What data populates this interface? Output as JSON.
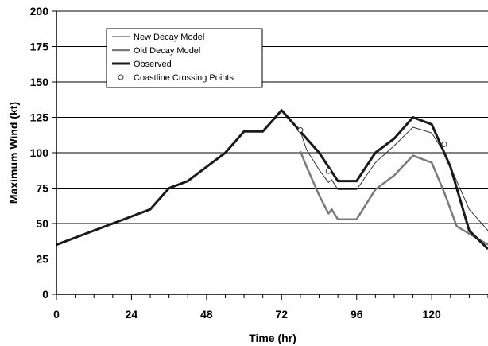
{
  "chart_data": {
    "type": "line",
    "xlabel": "Time (hr)",
    "ylabel": "Maximum Wind (kt)",
    "xlim": [
      0,
      138
    ],
    "ylim": [
      0,
      200
    ],
    "xticks": [
      0,
      24,
      48,
      72,
      96,
      120
    ],
    "yticks": [
      0,
      25,
      50,
      75,
      100,
      125,
      150,
      175,
      200
    ],
    "grid": "horizontal",
    "legend_position": "top-left",
    "legend": [
      {
        "key": "new",
        "label": "New Decay Model",
        "style": "thin-line"
      },
      {
        "key": "old",
        "label": "Old Decay Model",
        "style": "medium-gray-line"
      },
      {
        "key": "obs",
        "label": "Observed",
        "style": "thick-black-line"
      },
      {
        "key": "pts",
        "label": "Coastline Crossing Points",
        "style": "open-circle"
      }
    ],
    "series": [
      {
        "key": "obs",
        "name": "Observed",
        "color": "#1a1a1a",
        "x": [
          0,
          12,
          18,
          24,
          30,
          36,
          42,
          48,
          54,
          60,
          66,
          72,
          78,
          84,
          90,
          96,
          102,
          108,
          114,
          120,
          126,
          132,
          138
        ],
        "y": [
          35,
          45,
          50,
          55,
          60,
          75,
          80,
          90,
          100,
          115,
          115,
          130,
          115,
          100,
          80,
          80,
          100,
          110,
          125,
          120,
          90,
          45,
          32
        ]
      },
      {
        "key": "new",
        "name": "New Decay Model",
        "color": "#333333",
        "x": [
          78,
          80,
          84,
          87,
          88,
          90,
          96,
          102,
          108,
          114,
          120,
          124,
          132,
          138
        ],
        "y": [
          115,
          102,
          88,
          79,
          81,
          74,
          74,
          93,
          105,
          118,
          114,
          100,
          60,
          45
        ]
      },
      {
        "key": "old",
        "name": "Old Decay Model",
        "color": "#7a7a7a",
        "x": [
          78,
          80,
          84,
          87,
          88,
          90,
          96,
          102,
          108,
          114,
          120,
          124,
          128,
          138
        ],
        "y": [
          101,
          90,
          70,
          57,
          60,
          53,
          53,
          74,
          84,
          98,
          93,
          72,
          48,
          35
        ]
      }
    ],
    "coastline_crossing_points": {
      "name": "Coastline Crossing Points",
      "x": [
        78,
        87,
        124
      ],
      "y": [
        116,
        87,
        106
      ]
    }
  }
}
